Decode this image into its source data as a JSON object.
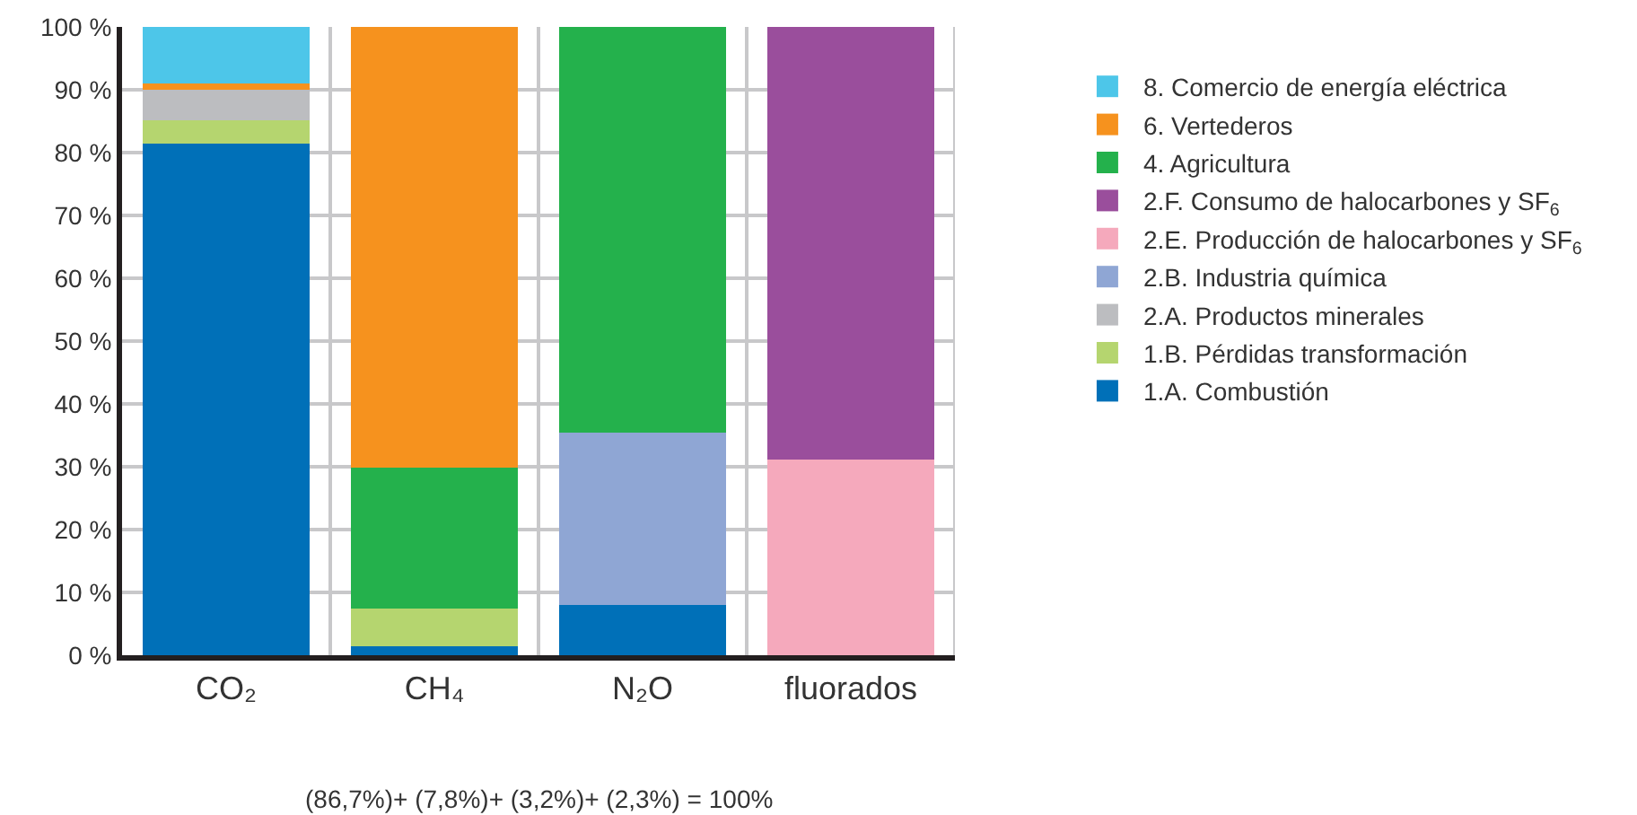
{
  "chart_data": {
    "type": "bar",
    "stacked": true,
    "categories": [
      "CO₂",
      "CH₄",
      "N₂O",
      "fluorados"
    ],
    "series": [
      {
        "name": "1.A. Combustión",
        "color": "#0070b8",
        "values": [
          81.4,
          1.4,
          8.0,
          null
        ]
      },
      {
        "name": "1.B. Pérdidas transformación",
        "color": "#b5d56f",
        "values": [
          3.8,
          6.0,
          null,
          null
        ]
      },
      {
        "name": "2.A. Productos minerales",
        "color": "#bcbdc0",
        "values": [
          4.8,
          null,
          null,
          null
        ]
      },
      {
        "name": "2.B. Industria química",
        "color": "#8fa6d4",
        "values": [
          null,
          null,
          27.5,
          null
        ]
      },
      {
        "name": "2.E. Producción de halocarbones y SF$_{6}$",
        "color": "#f5a9bc",
        "values": [
          null,
          null,
          null,
          31.2
        ]
      },
      {
        "name": "2.F. Consumo de halocarbones y SF$_{6}$",
        "color": "#9a4e9c",
        "values": [
          null,
          null,
          null,
          68.8
        ]
      },
      {
        "name": "4. Agricultura",
        "color": "#24b14c",
        "values": [
          null,
          22.4,
          64.5,
          null
        ]
      },
      {
        "name": "6. Vertederos",
        "color": "#f6921e",
        "values": [
          1.0,
          70.2,
          null,
          null
        ]
      },
      {
        "name": "8. Comercio de energía eléctrica",
        "color": "#4dc6e9",
        "values": [
          9.0,
          null,
          null,
          null
        ]
      }
    ],
    "ylim": [
      0,
      100
    ],
    "yticks": [
      {
        "value": 0,
        "label": "0 %"
      },
      {
        "value": 10,
        "label": "10 %"
      },
      {
        "value": 20,
        "label": "20 %"
      },
      {
        "value": 30,
        "label": "30 %"
      },
      {
        "value": 40,
        "label": "40 %"
      },
      {
        "value": 50,
        "label": "50 %"
      },
      {
        "value": 60,
        "label": "60 %"
      },
      {
        "value": 70,
        "label": "70 %"
      },
      {
        "value": 80,
        "label": "80 %"
      },
      {
        "value": 90,
        "label": "90 %"
      },
      {
        "value": 100,
        "label": "100 %"
      }
    ],
    "grid": true,
    "legend": "right",
    "annotations": [
      "(86,7%)+ (7,8%)+ (3,2%)+ (2,3%) = 100%"
    ]
  }
}
